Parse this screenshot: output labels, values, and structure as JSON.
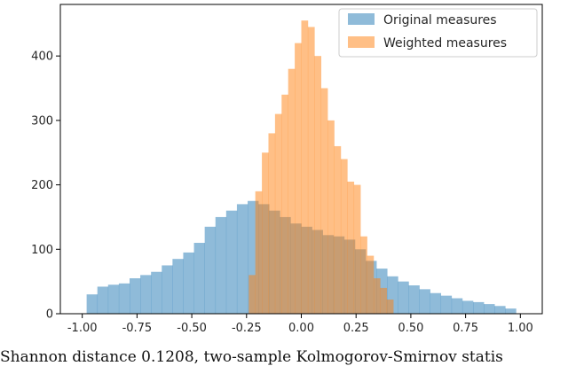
{
  "chart_data": {
    "type": "histogram",
    "xlim": [
      -1.1,
      1.1
    ],
    "ylim": [
      0,
      480
    ],
    "x_ticks": [
      -1.0,
      -0.75,
      -0.5,
      -0.25,
      0.0,
      0.25,
      0.5,
      0.75,
      1.0
    ],
    "x_tick_labels": [
      "-1.00",
      "-0.75",
      "-0.50",
      "-0.25",
      "0.00",
      "0.25",
      "0.50",
      "0.75",
      "1.00"
    ],
    "y_ticks": [
      0,
      100,
      200,
      300,
      400
    ],
    "y_tick_labels": [
      "0",
      "100",
      "200",
      "300",
      "400"
    ],
    "grid": false,
    "legend_position": "top-right",
    "series": [
      {
        "name": "Original measures",
        "color": "#1f77b4",
        "opacity": 0.5,
        "range": [
          -0.98,
          0.98
        ],
        "bin_count": 40,
        "counts": [
          30,
          42,
          45,
          47,
          55,
          60,
          65,
          75,
          85,
          95,
          110,
          135,
          150,
          160,
          170,
          175,
          170,
          160,
          150,
          140,
          135,
          130,
          122,
          120,
          115,
          100,
          82,
          70,
          58,
          50,
          44,
          38,
          32,
          28,
          24,
          20,
          18,
          15,
          12,
          8
        ]
      },
      {
        "name": "Weighted measures",
        "color": "#ff7f0e",
        "opacity": 0.5,
        "range": [
          -0.24,
          0.42
        ],
        "bin_count": 22,
        "counts": [
          60,
          190,
          250,
          280,
          310,
          340,
          380,
          420,
          455,
          445,
          400,
          350,
          300,
          260,
          240,
          205,
          200,
          120,
          90,
          55,
          40,
          22
        ]
      }
    ]
  },
  "caption": "Shannon distance 0.1208, two-sample Kolmogorov-Smirnov statis"
}
